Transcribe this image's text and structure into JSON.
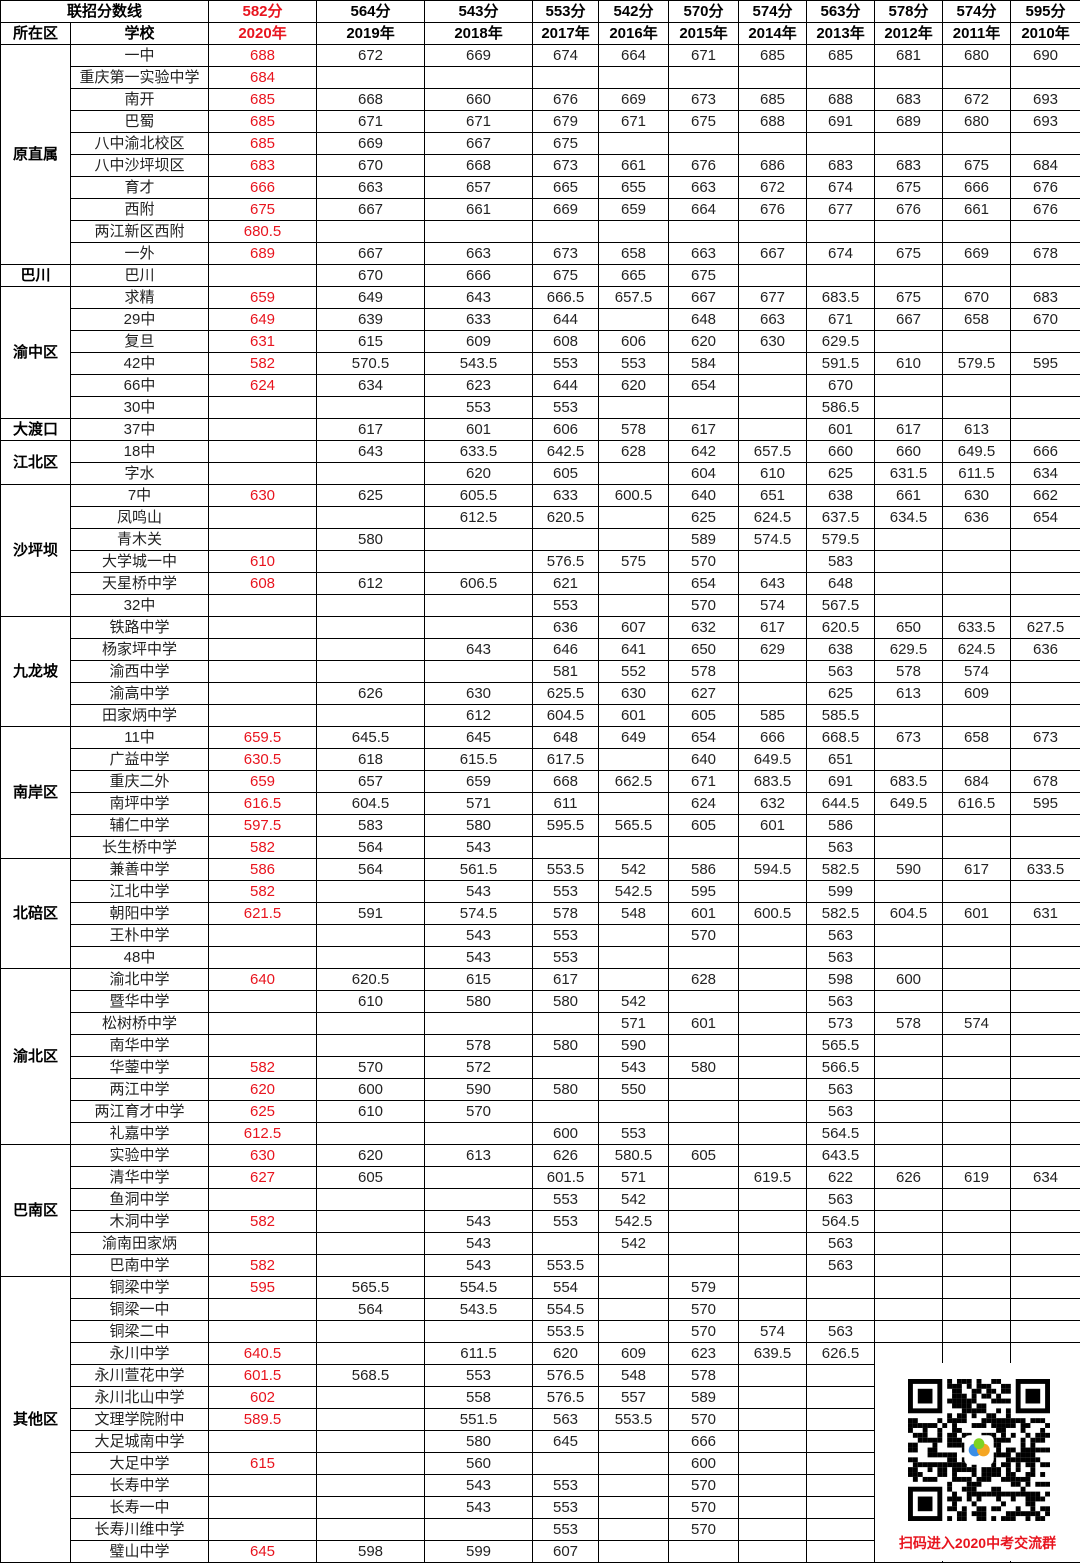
{
  "header": {
    "title_label": "联招分数线",
    "district_label": "所在区",
    "school_label": "学校",
    "cutoffs": [
      "582分",
      "564分",
      "543分",
      "553分",
      "542分",
      "570分",
      "574分",
      "563分",
      "578分",
      "574分",
      "595分"
    ],
    "years": [
      "2020年",
      "2019年",
      "2018年",
      "2017年",
      "2016年",
      "2015年",
      "2014年",
      "2013年",
      "2012年",
      "2011年",
      "2010年"
    ]
  },
  "highlight_color": "#e8141e",
  "regions": [
    {
      "name": "原直属",
      "schools": [
        {
          "name": "一中",
          "scores": [
            "688",
            "672",
            "669",
            "674",
            "664",
            "671",
            "685",
            "685",
            "681",
            "680",
            "690"
          ]
        },
        {
          "name": "重庆第一实验中学",
          "scores": [
            "684"
          ]
        },
        {
          "name": "南开",
          "scores": [
            "685",
            "668",
            "660",
            "676",
            "669",
            "673",
            "685",
            "688",
            "683",
            "672",
            "693"
          ]
        },
        {
          "name": "巴蜀",
          "scores": [
            "685",
            "671",
            "671",
            "679",
            "671",
            "675",
            "688",
            "691",
            "689",
            "680",
            "693"
          ]
        },
        {
          "name": "八中渝北校区",
          "scores": [
            "685",
            "669",
            "667",
            "675"
          ]
        },
        {
          "name": "八中沙坪坝区",
          "scores": [
            "683",
            "670",
            "668",
            "673",
            "661",
            "676",
            "686",
            "683",
            "683",
            "675",
            "684"
          ]
        },
        {
          "name": "育才",
          "scores": [
            "666",
            "663",
            "657",
            "665",
            "655",
            "663",
            "672",
            "674",
            "675",
            "666",
            "676"
          ]
        },
        {
          "name": "西附",
          "scores": [
            "675",
            "667",
            "661",
            "669",
            "659",
            "664",
            "676",
            "677",
            "676",
            "661",
            "676"
          ]
        },
        {
          "name": "两江新区西附",
          "scores": [
            "680.5"
          ]
        },
        {
          "name": "一外",
          "scores": [
            "689",
            "667",
            "663",
            "673",
            "658",
            "663",
            "667",
            "674",
            "675",
            "669",
            "678"
          ]
        }
      ]
    },
    {
      "name": "巴川",
      "schools": [
        {
          "name": "巴川",
          "scores": [
            "",
            "670",
            "666",
            "675",
            "665",
            "675"
          ]
        }
      ]
    },
    {
      "name": "渝中区",
      "schools": [
        {
          "name": "求精",
          "scores": [
            "659",
            "649",
            "643",
            "666.5",
            "657.5",
            "667",
            "677",
            "683.5",
            "675",
            "670",
            "683"
          ]
        },
        {
          "name": "29中",
          "scores": [
            "649",
            "639",
            "633",
            "644",
            "",
            "648",
            "663",
            "671",
            "667",
            "658",
            "670"
          ]
        },
        {
          "name": "复旦",
          "scores": [
            "631",
            "615",
            "609",
            "608",
            "606",
            "620",
            "630",
            "629.5"
          ]
        },
        {
          "name": "42中",
          "scores": [
            "582",
            "570.5",
            "543.5",
            "553",
            "553",
            "584",
            "",
            "591.5",
            "610",
            "579.5",
            "595"
          ]
        },
        {
          "name": "66中",
          "scores": [
            "624",
            "634",
            "623",
            "644",
            "620",
            "654",
            "",
            "670"
          ]
        },
        {
          "name": "30中",
          "scores": [
            "",
            "",
            "553",
            "553",
            "",
            "",
            "",
            "586.5"
          ]
        }
      ]
    },
    {
      "name": "大渡口",
      "schools": [
        {
          "name": "37中",
          "scores": [
            "",
            "617",
            "601",
            "606",
            "578",
            "617",
            "",
            "601",
            "617",
            "613"
          ]
        }
      ]
    },
    {
      "name": "江北区",
      "schools": [
        {
          "name": "18中",
          "scores": [
            "",
            "643",
            "633.5",
            "642.5",
            "628",
            "642",
            "657.5",
            "660",
            "660",
            "649.5",
            "666"
          ]
        },
        {
          "name": "字水",
          "scores": [
            "",
            "",
            "620",
            "605",
            "",
            "604",
            "610",
            "625",
            "631.5",
            "611.5",
            "634"
          ]
        }
      ]
    },
    {
      "name": "沙坪坝",
      "schools": [
        {
          "name": "7中",
          "scores": [
            "630",
            "625",
            "605.5",
            "633",
            "600.5",
            "640",
            "651",
            "638",
            "661",
            "630",
            "662"
          ]
        },
        {
          "name": "凤鸣山",
          "scores": [
            "",
            "",
            "612.5",
            "620.5",
            "",
            "625",
            "624.5",
            "637.5",
            "634.5",
            "636",
            "654"
          ]
        },
        {
          "name": "青木关",
          "scores": [
            "",
            "580",
            "",
            "",
            "",
            "589",
            "574.5",
            "579.5"
          ]
        },
        {
          "name": "大学城一中",
          "scores": [
            "610",
            "",
            "",
            "576.5",
            "575",
            "570",
            "",
            "583"
          ]
        },
        {
          "name": "天星桥中学",
          "scores": [
            "608",
            "612",
            "606.5",
            "621",
            "",
            "654",
            "643",
            "648"
          ]
        },
        {
          "name": "32中",
          "scores": [
            "",
            "",
            "",
            "553",
            "",
            "570",
            "574",
            "567.5"
          ]
        }
      ]
    },
    {
      "name": "九龙坡",
      "schools": [
        {
          "name": "铁路中学",
          "scores": [
            "",
            "",
            "",
            "636",
            "607",
            "632",
            "617",
            "620.5",
            "650",
            "633.5",
            "627.5"
          ]
        },
        {
          "name": "杨家坪中学",
          "scores": [
            "",
            "",
            "643",
            "646",
            "641",
            "650",
            "629",
            "638",
            "629.5",
            "624.5",
            "636"
          ]
        },
        {
          "name": "渝西中学",
          "scores": [
            "",
            "",
            "",
            "581",
            "552",
            "578",
            "",
            "563",
            "578",
            "574"
          ]
        },
        {
          "name": "渝高中学",
          "scores": [
            "",
            "626",
            "630",
            "625.5",
            "630",
            "627",
            "",
            "625",
            "613",
            "609"
          ]
        },
        {
          "name": "田家炳中学",
          "scores": [
            "",
            "",
            "612",
            "604.5",
            "601",
            "605",
            "585",
            "585.5"
          ]
        }
      ]
    },
    {
      "name": "南岸区",
      "schools": [
        {
          "name": "11中",
          "scores": [
            "659.5",
            "645.5",
            "645",
            "648",
            "649",
            "654",
            "666",
            "668.5",
            "673",
            "658",
            "673"
          ]
        },
        {
          "name": "广益中学",
          "scores": [
            "630.5",
            "618",
            "615.5",
            "617.5",
            "",
            "640",
            "649.5",
            "651"
          ]
        },
        {
          "name": "重庆二外",
          "scores": [
            "659",
            "657",
            "659",
            "668",
            "662.5",
            "671",
            "683.5",
            "691",
            "683.5",
            "684",
            "678"
          ]
        },
        {
          "name": "南坪中学",
          "scores": [
            "616.5",
            "604.5",
            "571",
            "611",
            "",
            "624",
            "632",
            "644.5",
            "649.5",
            "616.5",
            "595"
          ]
        },
        {
          "name": "辅仁中学",
          "scores": [
            "597.5",
            "583",
            "580",
            "595.5",
            "565.5",
            "605",
            "601",
            "586"
          ]
        },
        {
          "name": "长生桥中学",
          "scores": [
            "582",
            "564",
            "543",
            "",
            "",
            "",
            "",
            "563"
          ]
        }
      ]
    },
    {
      "name": "北碚区",
      "schools": [
        {
          "name": "兼善中学",
          "scores": [
            "586",
            "564",
            "561.5",
            "553.5",
            "542",
            "586",
            "594.5",
            "582.5",
            "590",
            "617",
            "633.5"
          ]
        },
        {
          "name": "江北中学",
          "scores": [
            "582",
            "",
            "543",
            "553",
            "542.5",
            "595",
            "",
            "599"
          ]
        },
        {
          "name": "朝阳中学",
          "scores": [
            "621.5",
            "591",
            "574.5",
            "578",
            "548",
            "601",
            "600.5",
            "582.5",
            "604.5",
            "601",
            "631"
          ]
        },
        {
          "name": "王朴中学",
          "scores": [
            "",
            "",
            "543",
            "553",
            "",
            "570",
            "",
            "563"
          ]
        },
        {
          "name": "48中",
          "scores": [
            "",
            "",
            "543",
            "553",
            "",
            "",
            "",
            "563"
          ]
        }
      ]
    },
    {
      "name": "渝北区",
      "schools": [
        {
          "name": "渝北中学",
          "scores": [
            "640",
            "620.5",
            "615",
            "617",
            "",
            "628",
            "",
            "598",
            "600"
          ]
        },
        {
          "name": "暨华中学",
          "scores": [
            "",
            "610",
            "580",
            "580",
            "542",
            "",
            "",
            "563"
          ]
        },
        {
          "name": "松树桥中学",
          "scores": [
            "",
            "",
            "",
            "",
            "571",
            "601",
            "",
            "573",
            "578",
            "574"
          ]
        },
        {
          "name": "南华中学",
          "scores": [
            "",
            "",
            "578",
            "580",
            "590",
            "",
            "",
            "565.5"
          ]
        },
        {
          "name": "华蓥中学",
          "scores": [
            "582",
            "570",
            "572",
            "",
            "543",
            "580",
            "",
            "566.5"
          ]
        },
        {
          "name": "两江中学",
          "scores": [
            "620",
            "600",
            "590",
            "580",
            "550",
            "",
            "",
            "563"
          ]
        },
        {
          "name": "两江育才中学",
          "scores": [
            "625",
            "610",
            "570",
            "",
            "",
            "",
            "",
            "563"
          ]
        },
        {
          "name": "礼嘉中学",
          "scores": [
            "612.5",
            "",
            "",
            "600",
            "553",
            "",
            "",
            "564.5"
          ]
        }
      ]
    },
    {
      "name": "巴南区",
      "schools": [
        {
          "name": "实验中学",
          "scores": [
            "630",
            "620",
            "613",
            "626",
            "580.5",
            "605",
            "",
            "643.5"
          ]
        },
        {
          "name": "清华中学",
          "scores": [
            "627",
            "605",
            "",
            "601.5",
            "571",
            "",
            "619.5",
            "622",
            "626",
            "619",
            "634"
          ]
        },
        {
          "name": "鱼洞中学",
          "scores": [
            "",
            "",
            "",
            "553",
            "542",
            "",
            "",
            "563"
          ]
        },
        {
          "name": "木洞中学",
          "scores": [
            "582",
            "",
            "543",
            "553",
            "542.5",
            "",
            "",
            "564.5"
          ]
        },
        {
          "name": "渝南田家炳",
          "scores": [
            "",
            "",
            "543",
            "",
            "542",
            "",
            "",
            "563"
          ]
        },
        {
          "name": "巴南中学",
          "scores": [
            "582",
            "",
            "543",
            "553.5",
            "",
            "",
            "",
            "563"
          ]
        }
      ]
    },
    {
      "name": "其他区",
      "schools": [
        {
          "name": "铜梁中学",
          "scores": [
            "595",
            "565.5",
            "554.5",
            "554",
            "",
            "579"
          ]
        },
        {
          "name": "铜梁一中",
          "scores": [
            "",
            "564",
            "543.5",
            "554.5",
            "",
            "570"
          ]
        },
        {
          "name": "铜梁二中",
          "scores": [
            "",
            "",
            "",
            "553.5",
            "",
            "570",
            "574",
            "563"
          ]
        },
        {
          "name": "永川中学",
          "scores": [
            "640.5",
            "",
            "611.5",
            "620",
            "609",
            "623",
            "639.5",
            "626.5"
          ]
        },
        {
          "name": "永川萱花中学",
          "scores": [
            "601.5",
            "568.5",
            "553",
            "576.5",
            "548",
            "578"
          ]
        },
        {
          "name": "永川北山中学",
          "scores": [
            "602",
            "",
            "558",
            "576.5",
            "557",
            "589"
          ]
        },
        {
          "name": "文理学院附中",
          "scores": [
            "589.5",
            "",
            "551.5",
            "563",
            "553.5",
            "570"
          ]
        },
        {
          "name": "大足城南中学",
          "scores": [
            "",
            "",
            "580",
            "645",
            "",
            "666"
          ]
        },
        {
          "name": "大足中学",
          "scores": [
            "615",
            "",
            "560",
            "",
            "",
            "600"
          ]
        },
        {
          "name": "长寿中学",
          "scores": [
            "",
            "",
            "543",
            "553",
            "",
            "570"
          ]
        },
        {
          "name": "长寿一中",
          "scores": [
            "",
            "",
            "543",
            "553",
            "",
            "570"
          ]
        },
        {
          "name": "长寿川维中学",
          "scores": [
            "",
            "",
            "",
            "553",
            "",
            "570"
          ]
        },
        {
          "name": "璧山中学",
          "scores": [
            "645",
            "598",
            "599",
            "607"
          ]
        }
      ]
    }
  ],
  "qr": {
    "caption": "扫码进入2020中考交流群",
    "icon": "qr-code-icon"
  }
}
